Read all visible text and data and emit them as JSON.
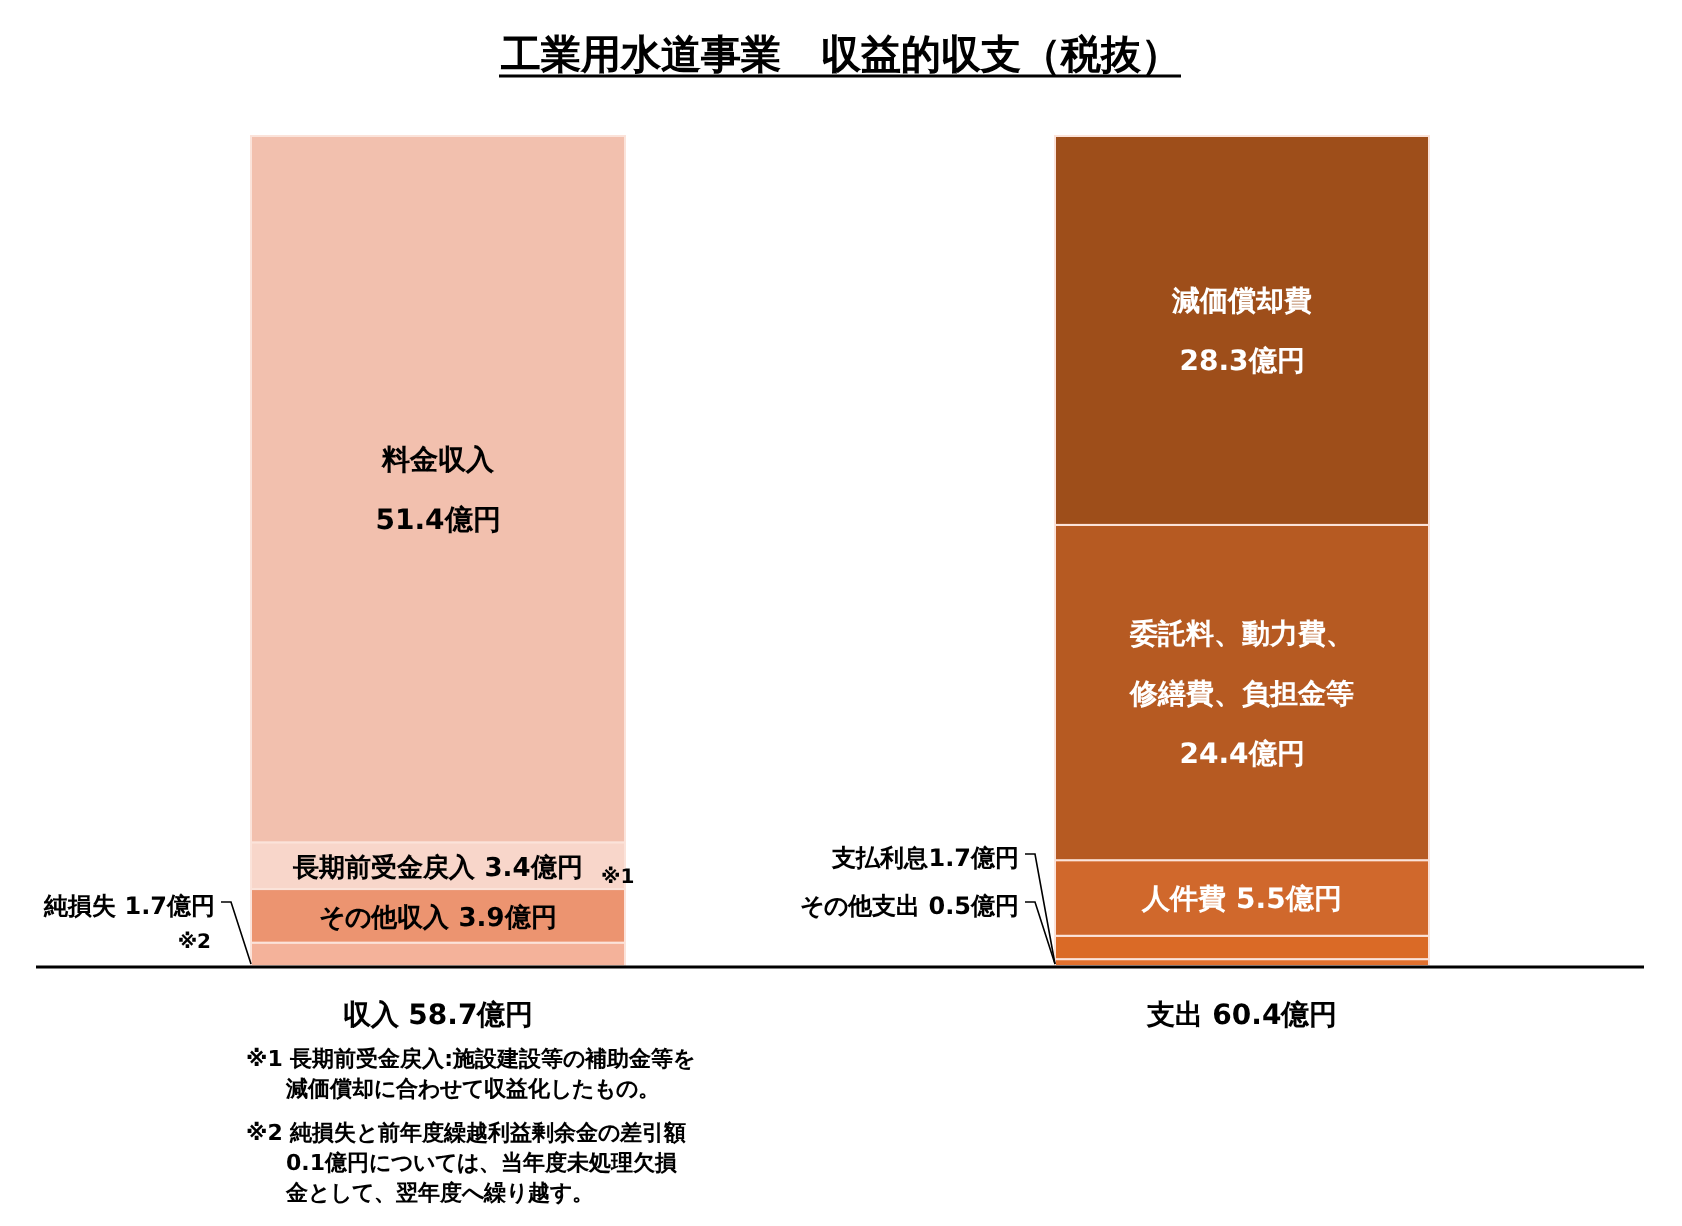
{
  "chart_data": {
    "type": "bar",
    "stacked": true,
    "title": "工業用水道事業　収益的収支（税抜）",
    "categories": [
      "収入 58.7億円",
      "支出 60.4億円"
    ],
    "series": [
      {
        "color": "#f4b29a",
        "values": [
          1.7,
          null
        ],
        "value_labels": [
          "純損失 1.7億円",
          null
        ]
      },
      {
        "color": "#ec9470",
        "values": [
          3.9,
          null
        ],
        "value_labels": [
          "その他収入 3.9億円",
          null
        ]
      },
      {
        "color": "#f8d6ca",
        "values": [
          3.4,
          null
        ],
        "value_labels": [
          "長期前受金戻入 3.4億円",
          null
        ]
      },
      {
        "color": "#f2c0ae",
        "values": [
          51.4,
          null
        ],
        "value_labels": [
          "料金収入\n51.4億円",
          null
        ]
      },
      {
        "color": "#e0702e",
        "values": [
          null,
          0.5
        ],
        "value_labels": [
          null,
          "その他支出 0.5億円"
        ]
      },
      {
        "color": "#da6a26",
        "values": [
          null,
          1.7
        ],
        "value_labels": [
          null,
          "支払利息1.7億円"
        ]
      },
      {
        "color": "#d0682c",
        "values": [
          null,
          5.5
        ],
        "value_labels": [
          null,
          "人件費 5.5億円"
        ]
      },
      {
        "color": "#b65a22",
        "values": [
          null,
          24.4
        ],
        "value_labels": [
          null,
          "委託料、動力費、修繕費、負担金等\n24.4億円"
        ]
      },
      {
        "color": "#9e4e1a",
        "values": [
          null,
          28.3
        ],
        "value_labels": [
          null,
          "減価償却費\n28.3億円"
        ]
      }
    ],
    "annotations": [
      "※1",
      "※2",
      "※1 長期前受金戻入:施設建設等の補助金等を減価償却に合わせて収益化したもの。",
      "※2 純損失と前年度繰越利益剰余金の差引額0.1億円については、当年度未処理欠損金として、翌年度へ繰り越す。"
    ]
  }
}
